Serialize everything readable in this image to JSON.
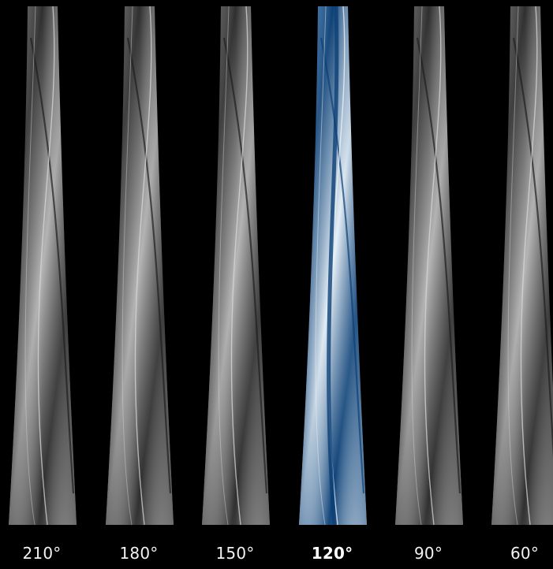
{
  "panels": [
    {
      "angle": "210°",
      "selected": false,
      "tint": "gray"
    },
    {
      "angle": "180°",
      "selected": false,
      "tint": "gray"
    },
    {
      "angle": "150°",
      "selected": false,
      "tint": "gray"
    },
    {
      "angle": "120°",
      "selected": true,
      "tint": "blue"
    },
    {
      "angle": "90°",
      "selected": false,
      "tint": "gray"
    },
    {
      "angle": "60°",
      "selected": false,
      "tint": "gray"
    }
  ],
  "colors": {
    "background": "#000000",
    "gray_light": "#b5b5b5",
    "gray_mid": "#7a7a7a",
    "gray_dark": "#2e2e2e",
    "blue_light": "#e8f1f8",
    "blue_mid": "#4f89bd",
    "blue_dark": "#0b3f75"
  }
}
